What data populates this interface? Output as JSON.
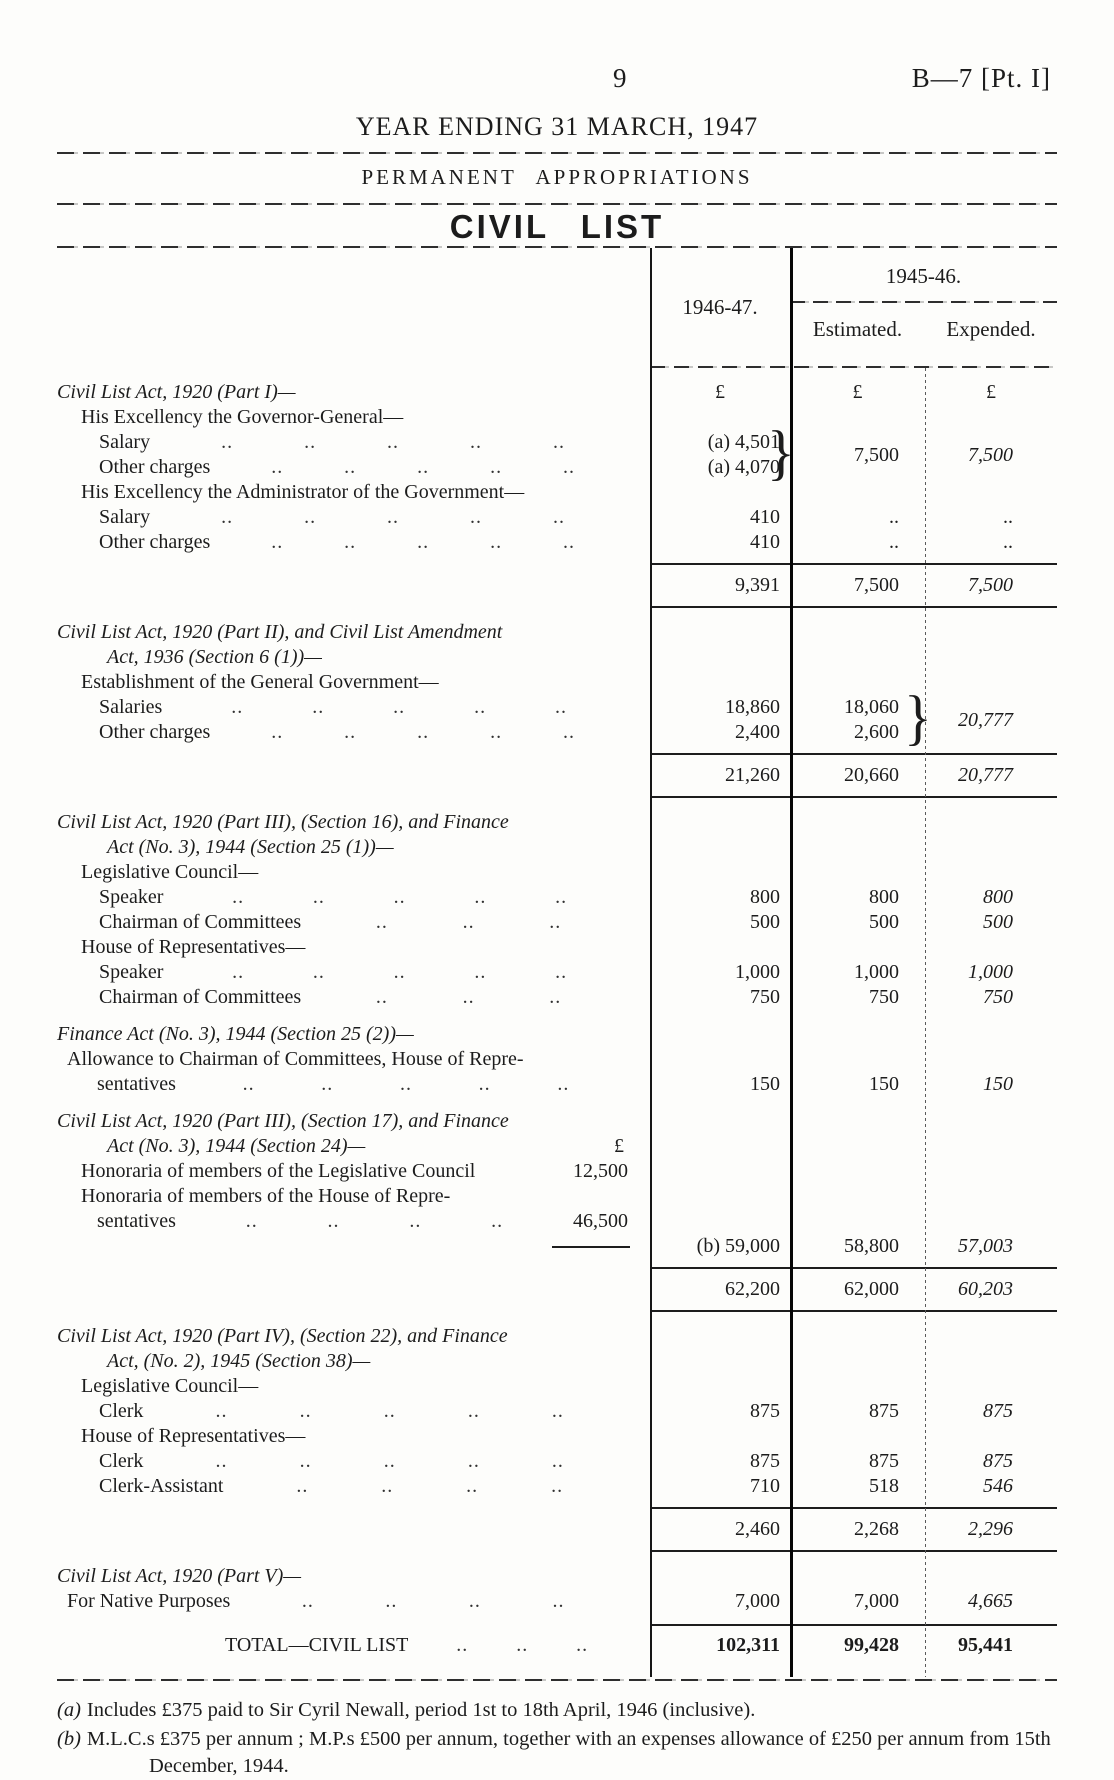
{
  "page": {
    "number": "9",
    "doc_ref": "B—7 [Pt. I]",
    "title": "YEAR ENDING 31 MARCH, 1947",
    "subtitle": "PERMANENT APPROPRIATIONS",
    "table_title": "CIVIL LIST"
  },
  "table": {
    "col_1946_47": "1946-47.",
    "col_1945_46": "1945-46.",
    "col_estimated": "Estimated.",
    "col_expended": "Expended."
  },
  "ui": {
    "dots": "..",
    "pound": "£",
    "brace": "}"
  },
  "s1": {
    "heading": "Civil List Act, 1920 (Part I)—",
    "sub1": "His Excellency the Governor-General—",
    "r1": {
      "label": "Salary",
      "v": "(a) 4,501"
    },
    "r2": {
      "label": "Other charges",
      "v": "(a) 4,070"
    },
    "brace_est": "7,500",
    "brace_exp": "7,500",
    "sub2": "His Excellency the Administrator of the Government—",
    "r3": {
      "label": "Salary",
      "v": "410",
      "est": "..",
      "exp": ".."
    },
    "r4": {
      "label": "Other charges",
      "v": "410",
      "est": "..",
      "exp": ".."
    },
    "total": {
      "v": "9,391",
      "est": "7,500",
      "exp": "7,500"
    }
  },
  "s2": {
    "heading1": "Civil List Act, 1920 (Part II), and Civil List Amendment",
    "heading2": "Act, 1936 (Section 6 (1))—",
    "sub": "Establishment of the General Government—",
    "r1": {
      "label": "Salaries",
      "v": "18,860",
      "est": "18,060"
    },
    "r2": {
      "label": "Other charges",
      "v": "2,400",
      "est": "2,600"
    },
    "brace_exp": "20,777",
    "total": {
      "v": "21,260",
      "est": "20,660",
      "exp": "20,777"
    }
  },
  "s3": {
    "heading1": "Civil List Act, 1920 (Part III), (Section 16), and Finance",
    "heading2": "Act (No. 3), 1944 (Section 25 (1))—",
    "sub1": "Legislative Council—",
    "r1": {
      "label": "Speaker",
      "v": "800",
      "est": "800",
      "exp": "800"
    },
    "r2": {
      "label": "Chairman of Committees",
      "v": "500",
      "est": "500",
      "exp": "500"
    },
    "sub2": "House of Representatives—",
    "r3": {
      "label": "Speaker",
      "v": "1,000",
      "est": "1,000",
      "exp": "1,000"
    },
    "r4": {
      "label": "Chairman of Committees",
      "v": "750",
      "est": "750",
      "exp": "750"
    }
  },
  "s4": {
    "heading": "Finance Act (No. 3), 1944 (Section 25 (2))—",
    "line1": "Allowance to Chairman of Committees, House of Repre-",
    "r1": {
      "label": "sentatives",
      "v": "150",
      "est": "150",
      "exp": "150"
    }
  },
  "s5": {
    "heading1": "Civil List Act, 1920 (Part III), (Section 17), and Finance",
    "heading2": "Act (No. 3), 1944 (Section 24)—",
    "pound": "£",
    "r1": {
      "label": "Honoraria of members of the Legislative Council",
      "amount": "12,500"
    },
    "r2line1": "Honoraria of members of the House of Repre-",
    "r2": {
      "label": "sentatives",
      "amount": "46,500"
    },
    "r3": {
      "v": "(b) 59,000",
      "est": "58,800",
      "exp": "57,003"
    },
    "total": {
      "v": "62,200",
      "est": "62,000",
      "exp": "60,203"
    }
  },
  "s6": {
    "heading1": "Civil List Act, 1920 (Part IV), (Section 22), and Finance",
    "heading2": "Act, (No. 2), 1945 (Section 38)—",
    "sub1": "Legislative Council—",
    "r1": {
      "label": "Clerk",
      "v": "875",
      "est": "875",
      "exp": "875"
    },
    "sub2": "House of Representatives—",
    "r2": {
      "label": "Clerk",
      "v": "875",
      "est": "875",
      "exp": "875"
    },
    "r3": {
      "label": "Clerk-Assistant",
      "v": "710",
      "est": "518",
      "exp": "546"
    },
    "total": {
      "v": "2,460",
      "est": "2,268",
      "exp": "2,296"
    }
  },
  "s7": {
    "heading": "Civil List Act, 1920 (Part V)—",
    "r1": {
      "label": "For Native Purposes",
      "v": "7,000",
      "est": "7,000",
      "exp": "4,665"
    }
  },
  "grand_total": {
    "label": "TOTAL—CIVIL LIST",
    "v": "102,311",
    "est": "99,428",
    "exp": "95,441"
  },
  "footnotes": [
    {
      "tag": "(a)",
      "text": "Includes £375 paid to Sir Cyril Newall, period 1st to 18th April, 1946 (inclusive)."
    },
    {
      "tag": "(b)",
      "text": "M.L.C.s £375 per annum ;  M.P.s £500 per annum, together with an expenses allowance of £250 per annum from 15th December, 1944."
    }
  ]
}
